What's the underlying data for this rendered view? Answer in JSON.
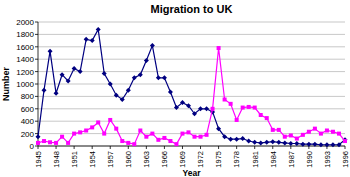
{
  "chart_data": {
    "type": "line",
    "title": "Migration to UK",
    "xlabel": "Year",
    "ylabel": "Number",
    "x": [
      1945,
      1946,
      1947,
      1948,
      1949,
      1950,
      1951,
      1952,
      1953,
      1954,
      1955,
      1956,
      1957,
      1958,
      1959,
      1960,
      1961,
      1962,
      1963,
      1964,
      1965,
      1966,
      1967,
      1968,
      1969,
      1970,
      1971,
      1972,
      1973,
      1974,
      1975,
      1976,
      1977,
      1978,
      1979,
      1980,
      1981,
      1982,
      1983,
      1984,
      1985,
      1986,
      1987,
      1988,
      1989,
      1990,
      1991,
      1992,
      1993,
      1994,
      1995,
      1996
    ],
    "series": [
      {
        "color": "#000080",
        "marker": "diamond",
        "values": [
          150,
          900,
          1530,
          850,
          1150,
          1050,
          1250,
          1200,
          1720,
          1700,
          1880,
          1170,
          1000,
          820,
          750,
          900,
          1100,
          1150,
          1380,
          1620,
          1100,
          1100,
          870,
          620,
          700,
          650,
          520,
          600,
          600,
          550,
          280,
          150,
          110,
          110,
          120,
          80,
          60,
          50,
          60,
          70,
          60,
          50,
          40,
          40,
          30,
          30,
          30,
          20,
          20,
          20,
          20,
          100
        ]
      },
      {
        "color": "#ff00ff",
        "marker": "square",
        "values": [
          50,
          80,
          60,
          50,
          150,
          50,
          200,
          220,
          250,
          300,
          380,
          200,
          420,
          280,
          80,
          50,
          30,
          250,
          150,
          200,
          100,
          130,
          80,
          30,
          200,
          220,
          150,
          150,
          180,
          600,
          1580,
          750,
          680,
          420,
          620,
          630,
          620,
          500,
          450,
          260,
          260,
          150,
          170,
          120,
          180,
          230,
          280,
          200,
          250,
          230,
          200,
          80
        ]
      }
    ],
    "xlim": [
      1945,
      1996
    ],
    "xticks": [
      1945,
      1948,
      1951,
      1954,
      1957,
      1960,
      1963,
      1966,
      1969,
      1972,
      1975,
      1978,
      1981,
      1984,
      1987,
      1990,
      1993,
      1996
    ],
    "ylim": [
      0,
      2000
    ],
    "yticks": [
      0,
      200,
      400,
      600,
      800,
      1000,
      1200,
      1400,
      1600,
      1800,
      2000
    ],
    "grid": true
  }
}
